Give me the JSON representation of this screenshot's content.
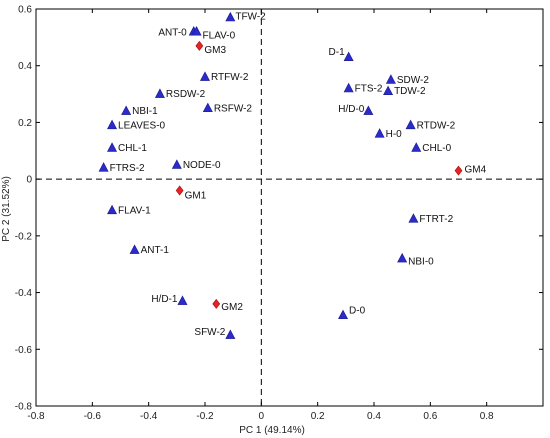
{
  "chart_data": {
    "type": "scatter",
    "title": "",
    "xlabel": "PC 1 (49.14%)",
    "ylabel": "PC 2 (31.52%)",
    "xlim": [
      -0.8,
      1.0
    ],
    "ylim": [
      -0.8,
      0.6
    ],
    "xticks": [
      -0.8,
      -0.6,
      -0.4,
      -0.2,
      0,
      0.2,
      0.4,
      0.6,
      0.8
    ],
    "yticks": [
      -0.8,
      -0.6,
      -0.4,
      -0.2,
      0,
      0.2,
      0.4,
      0.6
    ],
    "zero_lines": true,
    "grid": false,
    "colors": {
      "variables": "#2b2bcc",
      "samples": "#e82323"
    },
    "series": [
      {
        "kind": "variables",
        "marker": "triangle",
        "points": [
          {
            "label": "TFW-2",
            "x": -0.11,
            "y": 0.57
          },
          {
            "label": "ANT-0",
            "x": -0.24,
            "y": 0.52
          },
          {
            "label": "FLAV-0",
            "x": -0.23,
            "y": 0.52
          },
          {
            "label": "D-1",
            "x": 0.31,
            "y": 0.43
          },
          {
            "label": "SDW-2",
            "x": 0.46,
            "y": 0.35
          },
          {
            "label": "RTFW-2",
            "x": -0.2,
            "y": 0.36
          },
          {
            "label": "FTS-2",
            "x": 0.31,
            "y": 0.32
          },
          {
            "label": "TDW-2",
            "x": 0.45,
            "y": 0.31
          },
          {
            "label": "RSDW-2",
            "x": -0.36,
            "y": 0.3
          },
          {
            "label": "H/D-0",
            "x": 0.38,
            "y": 0.24
          },
          {
            "label": "NBI-1",
            "x": -0.48,
            "y": 0.24
          },
          {
            "label": "RSFW-2",
            "x": -0.19,
            "y": 0.25
          },
          {
            "label": "RTDW-2",
            "x": 0.53,
            "y": 0.19
          },
          {
            "label": "LEAVES-0",
            "x": -0.53,
            "y": 0.19
          },
          {
            "label": "H-0",
            "x": 0.42,
            "y": 0.16
          },
          {
            "label": "CHL-0",
            "x": 0.55,
            "y": 0.11
          },
          {
            "label": "CHL-1",
            "x": -0.53,
            "y": 0.11
          },
          {
            "label": "NODE-0",
            "x": -0.3,
            "y": 0.05
          },
          {
            "label": "FTRS-2",
            "x": -0.56,
            "y": 0.04
          },
          {
            "label": "FLAV-1",
            "x": -0.53,
            "y": -0.11
          },
          {
            "label": "FTRT-2",
            "x": 0.54,
            "y": -0.14
          },
          {
            "label": "ANT-1",
            "x": -0.45,
            "y": -0.25
          },
          {
            "label": "NBI-0",
            "x": 0.5,
            "y": -0.28
          },
          {
            "label": "H/D-1",
            "x": -0.28,
            "y": -0.43
          },
          {
            "label": "D-0",
            "x": 0.29,
            "y": -0.48
          },
          {
            "label": "SFW-2",
            "x": -0.11,
            "y": -0.55
          }
        ]
      },
      {
        "kind": "samples",
        "marker": "diamond",
        "points": [
          {
            "label": "GM3",
            "x": -0.22,
            "y": 0.47
          },
          {
            "label": "GM4",
            "x": 0.7,
            "y": 0.03
          },
          {
            "label": "GM1",
            "x": -0.29,
            "y": -0.04
          },
          {
            "label": "GM2",
            "x": -0.16,
            "y": -0.44
          }
        ]
      }
    ]
  }
}
